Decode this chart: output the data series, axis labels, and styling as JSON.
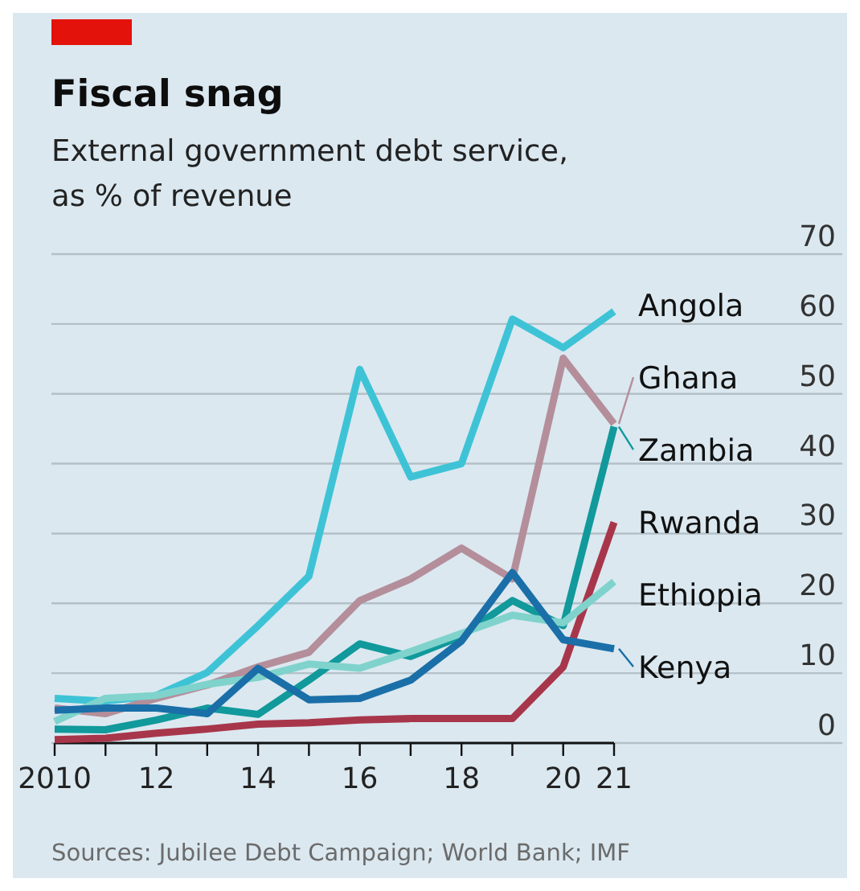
{
  "chart_data": {
    "type": "line",
    "title": "Fiscal snag",
    "subtitle": "External government debt service, as % of revenue",
    "annotations": [
      "Sources: Jubilee Debt Campaign; World Bank; IMF"
    ],
    "x": [
      2010,
      2011,
      2012,
      2013,
      2014,
      2015,
      2016,
      2017,
      2018,
      2019,
      2020,
      2021
    ],
    "xlim": [
      2010,
      2021
    ],
    "xticks": [
      2010,
      {
        "value": 2011,
        "label": null
      },
      {
        "value": 2012,
        "label": "12"
      },
      {
        "value": 2013,
        "label": null
      },
      {
        "value": 2014,
        "label": "14"
      },
      {
        "value": 2015,
        "label": null
      },
      {
        "value": 2016,
        "label": "16"
      },
      {
        "value": 2017,
        "label": null
      },
      {
        "value": 2018,
        "label": "18"
      },
      {
        "value": 2019,
        "label": null
      },
      {
        "value": 2020,
        "label": "20"
      },
      {
        "value": 2021,
        "label": "21"
      }
    ],
    "ylim": [
      0,
      70
    ],
    "yticks": [
      0,
      10,
      20,
      30,
      40,
      50,
      60,
      70
    ],
    "grid": "y",
    "legend": "right",
    "marker": "none",
    "line_style": "solid",
    "series": [
      {
        "name": "Angola",
        "color": "#3ec3d6",
        "values": [
          6.4,
          6,
          6.8,
          10.1,
          16.8,
          23.9,
          53.5,
          38.1,
          40,
          60.7,
          56.6,
          61.8
        ]
      },
      {
        "name": "Ghana",
        "color": "#b48e9a",
        "values": [
          5,
          4.2,
          6.4,
          8.3,
          10.9,
          13,
          20.4,
          23.5,
          27.9,
          23.5,
          55.1,
          45.7
        ]
      },
      {
        "name": "Zambia",
        "color": "#11999b",
        "values": [
          2,
          1.9,
          3.3,
          5,
          4.1,
          9,
          14.2,
          12.4,
          15.3,
          20.4,
          16.8,
          45.3
        ]
      },
      {
        "name": "Rwanda",
        "color": "#a8364b",
        "values": [
          0.5,
          0.7,
          1.4,
          2,
          2.7,
          2.9,
          3.3,
          3.5,
          3.5,
          3.5,
          10.9,
          31.6
        ]
      },
      {
        "name": "Ethiopia",
        "color": "#7fd3cc",
        "values": [
          3.1,
          6.4,
          6.8,
          8.4,
          9.4,
          11.3,
          10.7,
          13.1,
          15.7,
          18.3,
          17.2,
          23.1
        ]
      },
      {
        "name": "Kenya",
        "color": "#1a6fa8",
        "values": [
          4.7,
          5,
          5,
          4.2,
          10.7,
          6.2,
          6.4,
          9,
          14.6,
          24.4,
          14.8,
          13.5
        ]
      }
    ]
  }
}
